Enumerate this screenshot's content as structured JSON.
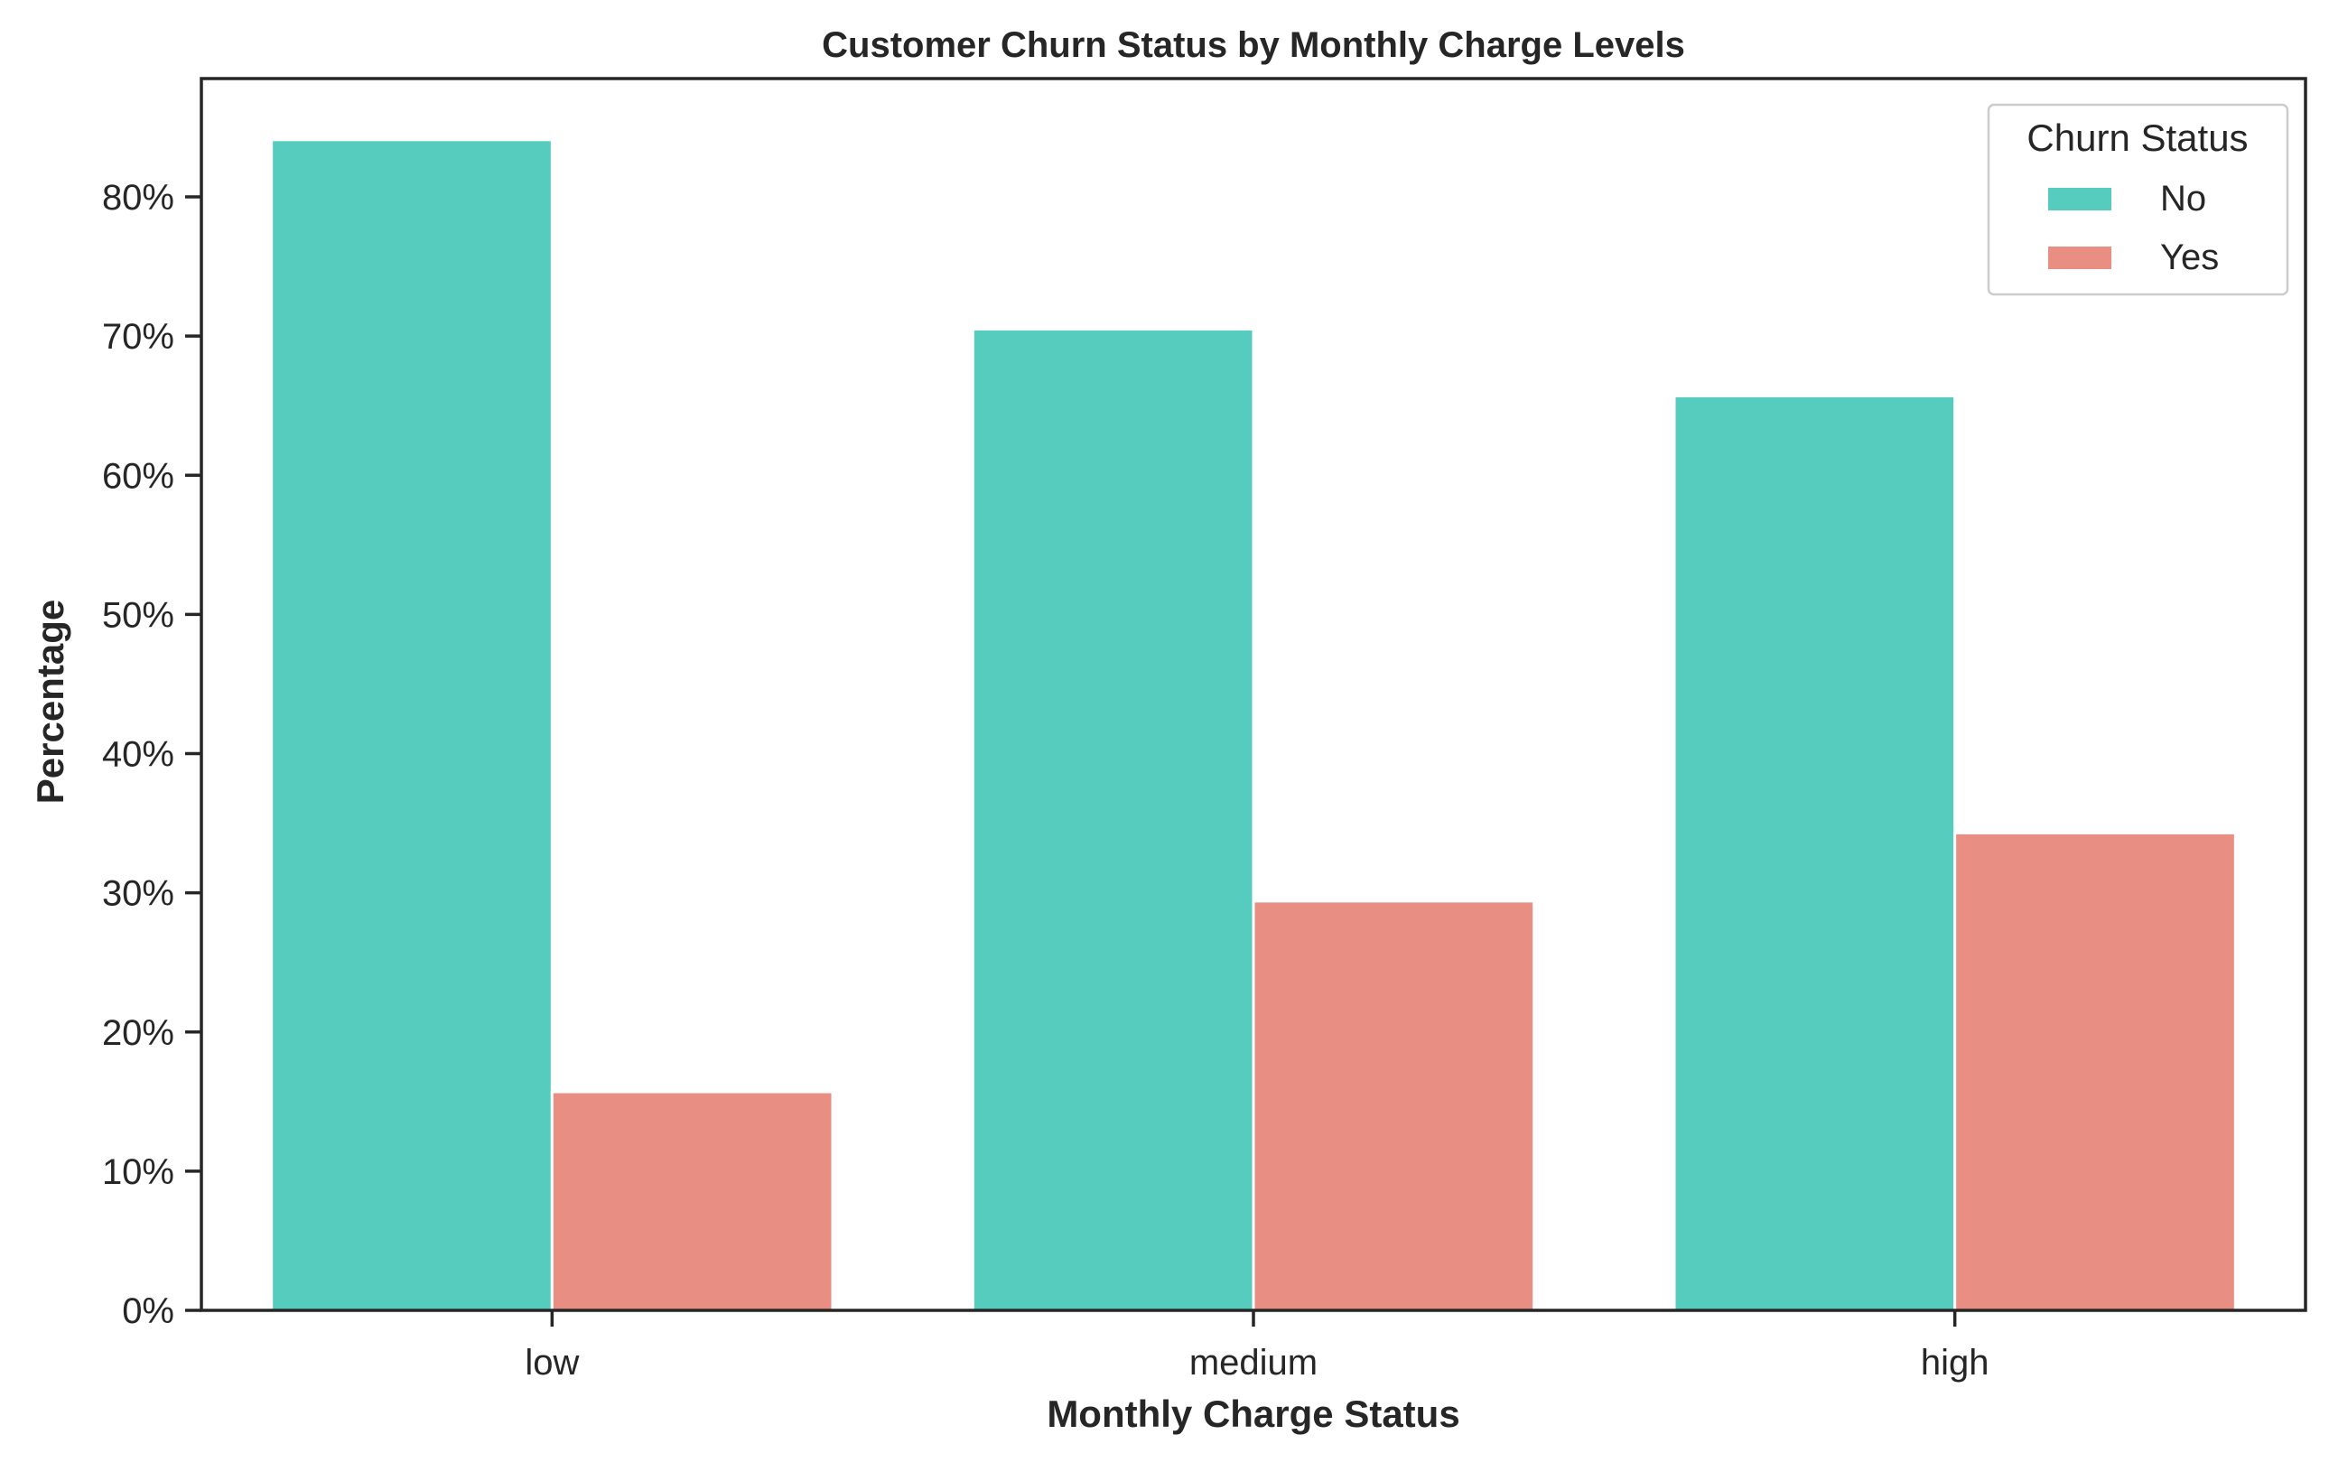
{
  "chart_data": {
    "type": "bar",
    "title": "Customer Churn Status by Monthly Charge Levels",
    "xlabel": "Monthly Charge Status",
    "ylabel": "Percentage",
    "categories": [
      "low",
      "medium",
      "high"
    ],
    "series": [
      {
        "name": "No",
        "values": [
          84.1,
          70.5,
          65.7
        ],
        "color": "#56CCBE"
      },
      {
        "name": "Yes",
        "values": [
          15.7,
          29.4,
          34.3
        ],
        "color": "#E88E83"
      }
    ],
    "ylim": [
      0,
      88.5
    ],
    "yticks": [
      0,
      10,
      20,
      30,
      40,
      50,
      60,
      70,
      80
    ],
    "ytick_format": "percent",
    "legend": {
      "title": "Churn Status",
      "placement": "top-right"
    },
    "grid": false
  }
}
